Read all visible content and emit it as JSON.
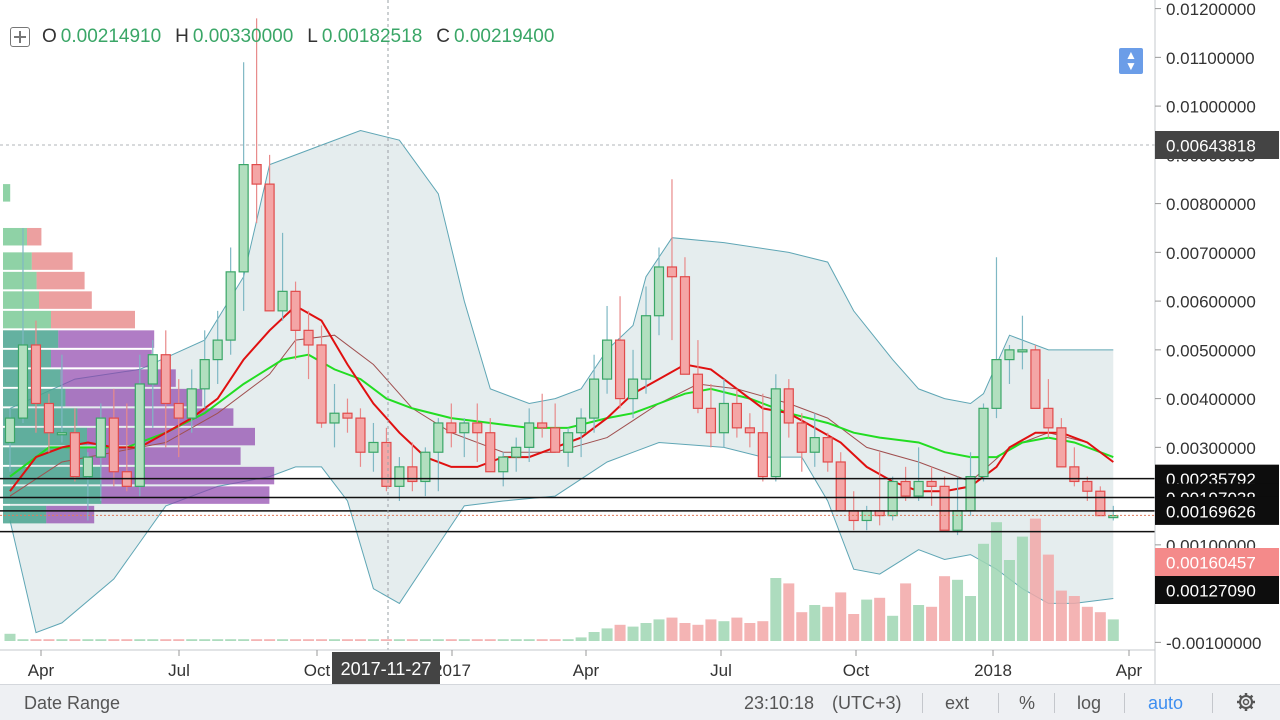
{
  "legend": {
    "o_key": "O",
    "o_val": "0.00214910",
    "h_key": "H",
    "h_val": "0.00330000",
    "l_key": "L",
    "l_val": "0.00182518",
    "c_key": "C",
    "c_val": "0.00219400"
  },
  "crosshair_date": "2017-11-27",
  "bottom_bar": {
    "date_range": "Date Range",
    "clock": "23:10:18",
    "timezone": "(UTC+3)",
    "ext": "ext",
    "percent": "%",
    "log": "log",
    "auto": "auto"
  },
  "icons": [
    "crosshair-plus-icon",
    "scroll-to-latest-icon",
    "gear-icon"
  ],
  "colors": {
    "up": "#3aa667",
    "up_fill": "#b2dfbf",
    "down": "#e04b4b",
    "down_fill": "#f4a6a6",
    "ma_fast": "#e01010",
    "ma_slow": "#22dd22",
    "band": "#5fa6b5",
    "band_fill": "#dfe9ea",
    "accent": "#3d8ef0",
    "crosshair_label_bg": "#444444",
    "current_price_bg": "#f48a8a"
  },
  "chart_data": {
    "type": "candlestick",
    "interval": "weekly",
    "x_tick_labels": [
      "Apr",
      "Jul",
      "Oct",
      "2017",
      "Apr",
      "Jul",
      "Oct",
      "2018",
      "Apr"
    ],
    "y_tick_labels": [
      "0.01200000",
      "0.01100000",
      "0.01000000",
      "0.00900000",
      "0.00800000",
      "0.00700000",
      "0.00600000",
      "0.00500000",
      "0.00400000",
      "0.00300000",
      "0.00200000",
      "0.00100000",
      "0.00000000",
      "-0.00100000"
    ],
    "ylim": [
      -0.00105,
      0.0124
    ],
    "price_markers": [
      {
        "value": "0.00643818",
        "style": "crosshair"
      },
      {
        "value": "0.00235792",
        "style": "black"
      },
      {
        "value": "0.00197038",
        "style": "black"
      },
      {
        "value": "0.00169626",
        "style": "black"
      },
      {
        "value": "0.00160457",
        "style": "current"
      },
      {
        "value": "0.00127090",
        "style": "black"
      }
    ],
    "horizontal_lines": [
      0.00235792,
      0.00197038,
      0.00169626,
      0.0012709
    ],
    "current_price": 0.00160457,
    "candles": [
      [
        0.0031,
        0.0038,
        0.0025,
        0.0036
      ],
      [
        0.0036,
        0.0075,
        0.0035,
        0.0051
      ],
      [
        0.0051,
        0.0056,
        0.0033,
        0.0039
      ],
      [
        0.0039,
        0.0041,
        0.0029,
        0.0033
      ],
      [
        0.0033,
        0.0049,
        0.0031,
        0.0033
      ],
      [
        0.0033,
        0.0038,
        0.0023,
        0.0024
      ],
      [
        0.0024,
        0.0029,
        0.0015,
        0.0028
      ],
      [
        0.0028,
        0.0039,
        0.0019,
        0.0036
      ],
      [
        0.0036,
        0.0042,
        0.0022,
        0.0025
      ],
      [
        0.0025,
        0.0039,
        0.0021,
        0.0022
      ],
      [
        0.0022,
        0.0049,
        0.002,
        0.0043
      ],
      [
        0.0043,
        0.0052,
        0.0034,
        0.0049
      ],
      [
        0.0049,
        0.0054,
        0.003,
        0.0039
      ],
      [
        0.0039,
        0.0044,
        0.0028,
        0.0036
      ],
      [
        0.0036,
        0.0046,
        0.0033,
        0.0042
      ],
      [
        0.0042,
        0.0054,
        0.0038,
        0.0048
      ],
      [
        0.0048,
        0.0058,
        0.0043,
        0.0052
      ],
      [
        0.0052,
        0.0071,
        0.0049,
        0.0066
      ],
      [
        0.0066,
        0.0109,
        0.0058,
        0.0088
      ],
      [
        0.0088,
        0.0118,
        0.0076,
        0.0084
      ],
      [
        0.0084,
        0.009,
        0.0058,
        0.0058
      ],
      [
        0.0058,
        0.0074,
        0.0056,
        0.0062
      ],
      [
        0.0062,
        0.0064,
        0.0048,
        0.0054
      ],
      [
        0.0054,
        0.0058,
        0.0044,
        0.0051
      ],
      [
        0.0051,
        0.0055,
        0.0034,
        0.0035
      ],
      [
        0.0035,
        0.0043,
        0.003,
        0.0037
      ],
      [
        0.0037,
        0.004,
        0.0033,
        0.0036
      ],
      [
        0.0036,
        0.0038,
        0.0026,
        0.0029
      ],
      [
        0.0029,
        0.0035,
        0.0025,
        0.0031
      ],
      [
        0.0031,
        0.0034,
        0.0021,
        0.0022
      ],
      [
        0.0022,
        0.0028,
        0.0019,
        0.0026
      ],
      [
        0.0026,
        0.0031,
        0.0021,
        0.0023
      ],
      [
        0.0023,
        0.003,
        0.002,
        0.0029
      ],
      [
        0.0029,
        0.0036,
        0.0021,
        0.0035
      ],
      [
        0.0035,
        0.0039,
        0.003,
        0.0033
      ],
      [
        0.0033,
        0.0036,
        0.0028,
        0.0035
      ],
      [
        0.0035,
        0.0039,
        0.0027,
        0.0033
      ],
      [
        0.0033,
        0.0036,
        0.0025,
        0.0025
      ],
      [
        0.0025,
        0.0029,
        0.0022,
        0.0028
      ],
      [
        0.0028,
        0.0032,
        0.0025,
        0.003
      ],
      [
        0.003,
        0.0038,
        0.0027,
        0.0035
      ],
      [
        0.0035,
        0.0041,
        0.0032,
        0.0034
      ],
      [
        0.0034,
        0.0039,
        0.0029,
        0.0029
      ],
      [
        0.0029,
        0.0034,
        0.0026,
        0.0033
      ],
      [
        0.0033,
        0.0038,
        0.0028,
        0.0036
      ],
      [
        0.0036,
        0.0049,
        0.0033,
        0.0044
      ],
      [
        0.0044,
        0.0059,
        0.0041,
        0.0052
      ],
      [
        0.0052,
        0.0061,
        0.0038,
        0.004
      ],
      [
        0.004,
        0.005,
        0.0036,
        0.0044
      ],
      [
        0.0044,
        0.0063,
        0.0041,
        0.0057
      ],
      [
        0.0057,
        0.0071,
        0.0053,
        0.0067
      ],
      [
        0.0067,
        0.0085,
        0.0052,
        0.0065
      ],
      [
        0.0065,
        0.0069,
        0.0045,
        0.0045
      ],
      [
        0.0045,
        0.0052,
        0.0037,
        0.0038
      ],
      [
        0.0038,
        0.0043,
        0.003,
        0.0033
      ],
      [
        0.0033,
        0.0044,
        0.003,
        0.0039
      ],
      [
        0.0039,
        0.0042,
        0.0032,
        0.0034
      ],
      [
        0.0034,
        0.0037,
        0.003,
        0.0033
      ],
      [
        0.0033,
        0.0041,
        0.0023,
        0.0024
      ],
      [
        0.0024,
        0.0045,
        0.0023,
        0.0042
      ],
      [
        0.0042,
        0.0044,
        0.0032,
        0.0035
      ],
      [
        0.0035,
        0.0037,
        0.0025,
        0.0029
      ],
      [
        0.0029,
        0.0037,
        0.0026,
        0.0032
      ],
      [
        0.0032,
        0.0033,
        0.0025,
        0.0027
      ],
      [
        0.0027,
        0.0029,
        0.0017,
        0.0017
      ],
      [
        0.0017,
        0.0021,
        0.0013,
        0.0015
      ],
      [
        0.0015,
        0.0018,
        0.0013,
        0.0017
      ],
      [
        0.0017,
        0.0029,
        0.0014,
        0.0016
      ],
      [
        0.0016,
        0.0024,
        0.0015,
        0.0023
      ],
      [
        0.0023,
        0.0026,
        0.0019,
        0.002
      ],
      [
        0.002,
        0.003,
        0.0019,
        0.0023
      ],
      [
        0.0023,
        0.0026,
        0.0018,
        0.0022
      ],
      [
        0.0022,
        0.0024,
        0.0013,
        0.0013
      ],
      [
        0.0013,
        0.0024,
        0.0012,
        0.0017
      ],
      [
        0.0017,
        0.0029,
        0.0016,
        0.0024
      ],
      [
        0.0024,
        0.0039,
        0.0023,
        0.0038
      ],
      [
        0.0038,
        0.0069,
        0.0036,
        0.0048
      ],
      [
        0.0048,
        0.0051,
        0.0043,
        0.005
      ],
      [
        0.005,
        0.0057,
        0.0046,
        0.005
      ],
      [
        0.005,
        0.0051,
        0.0038,
        0.0038
      ],
      [
        0.0038,
        0.0044,
        0.0032,
        0.0034
      ],
      [
        0.0034,
        0.0036,
        0.0026,
        0.0026
      ],
      [
        0.0026,
        0.003,
        0.0022,
        0.0023
      ],
      [
        0.0023,
        0.0024,
        0.0019,
        0.0021
      ],
      [
        0.0021,
        0.0022,
        0.0016,
        0.0016
      ],
      [
        0.0016,
        0.0018,
        0.0015,
        0.0016
      ]
    ],
    "bollinger_upper": [
      [
        0,
        0.0038
      ],
      [
        5,
        0.0044
      ],
      [
        10,
        0.0046
      ],
      [
        15,
        0.0052
      ],
      [
        18,
        0.0065
      ],
      [
        20,
        0.0088
      ],
      [
        22,
        0.009
      ],
      [
        24,
        0.0092
      ],
      [
        27,
        0.0095
      ],
      [
        30,
        0.0093
      ],
      [
        33,
        0.0082
      ],
      [
        35,
        0.006
      ],
      [
        37,
        0.0042
      ],
      [
        40,
        0.0039
      ],
      [
        42,
        0.004
      ],
      [
        44,
        0.0042
      ],
      [
        46,
        0.005
      ],
      [
        48,
        0.0055
      ],
      [
        49,
        0.0065
      ],
      [
        51,
        0.0073
      ],
      [
        55,
        0.0072
      ],
      [
        60,
        0.007
      ],
      [
        63,
        0.0068
      ],
      [
        65,
        0.0058
      ],
      [
        68,
        0.0048
      ],
      [
        70,
        0.0042
      ],
      [
        72,
        0.004
      ],
      [
        74,
        0.0039
      ],
      [
        75,
        0.0041
      ],
      [
        77,
        0.0053
      ],
      [
        80,
        0.005
      ],
      [
        85,
        0.005
      ]
    ],
    "bollinger_lower": [
      [
        0,
        0.0015
      ],
      [
        2,
        -0.0008
      ],
      [
        4,
        -0.0006
      ],
      [
        8,
        0.0003
      ],
      [
        12,
        0.0018
      ],
      [
        16,
        0.0022
      ],
      [
        20,
        0.0024
      ],
      [
        22,
        0.0026
      ],
      [
        24,
        0.0026
      ],
      [
        26,
        0.0019
      ],
      [
        28,
        0.0001
      ],
      [
        30,
        -0.0002
      ],
      [
        33,
        0.001
      ],
      [
        35,
        0.0018
      ],
      [
        38,
        0.0019
      ],
      [
        42,
        0.002
      ],
      [
        46,
        0.0027
      ],
      [
        50,
        0.0031
      ],
      [
        55,
        0.003
      ],
      [
        58,
        0.0028
      ],
      [
        61,
        0.0028
      ],
      [
        63,
        0.0019
      ],
      [
        65,
        0.0005
      ],
      [
        67,
        0.0004
      ],
      [
        70,
        0.0009
      ],
      [
        72,
        0.0007
      ],
      [
        74,
        0.0008
      ],
      [
        76,
        0.0005
      ],
      [
        78,
        0.0001
      ],
      [
        80,
        -0.0002
      ],
      [
        82,
        -0.0002
      ],
      [
        85,
        -0.0001
      ]
    ],
    "ma_fast": [
      [
        0,
        0.0021
      ],
      [
        2,
        0.0028
      ],
      [
        4,
        0.003
      ],
      [
        6,
        0.0031
      ],
      [
        8,
        0.003
      ],
      [
        10,
        0.003
      ],
      [
        12,
        0.0033
      ],
      [
        14,
        0.0036
      ],
      [
        16,
        0.004
      ],
      [
        18,
        0.0048
      ],
      [
        20,
        0.0054
      ],
      [
        22,
        0.0059
      ],
      [
        24,
        0.0056
      ],
      [
        26,
        0.0047
      ],
      [
        28,
        0.0039
      ],
      [
        30,
        0.0033
      ],
      [
        32,
        0.0028
      ],
      [
        34,
        0.0026
      ],
      [
        36,
        0.0026
      ],
      [
        38,
        0.0028
      ],
      [
        40,
        0.0028
      ],
      [
        42,
        0.003
      ],
      [
        44,
        0.0032
      ],
      [
        46,
        0.0036
      ],
      [
        48,
        0.0041
      ],
      [
        50,
        0.0044
      ],
      [
        52,
        0.0047
      ],
      [
        54,
        0.0046
      ],
      [
        56,
        0.0042
      ],
      [
        58,
        0.0038
      ],
      [
        60,
        0.0037
      ],
      [
        62,
        0.0034
      ],
      [
        64,
        0.0031
      ],
      [
        66,
        0.0026
      ],
      [
        68,
        0.0023
      ],
      [
        70,
        0.0021
      ],
      [
        72,
        0.0021
      ],
      [
        74,
        0.0022
      ],
      [
        76,
        0.0026
      ],
      [
        77,
        0.003
      ],
      [
        79,
        0.0033
      ],
      [
        81,
        0.0033
      ],
      [
        83,
        0.0031
      ],
      [
        85,
        0.0027
      ]
    ],
    "ma_slow": [
      [
        0,
        0.0024
      ],
      [
        3,
        0.003
      ],
      [
        6,
        0.003
      ],
      [
        9,
        0.003
      ],
      [
        12,
        0.0033
      ],
      [
        15,
        0.0037
      ],
      [
        18,
        0.0043
      ],
      [
        21,
        0.0048
      ],
      [
        23,
        0.0049
      ],
      [
        25,
        0.0046
      ],
      [
        27,
        0.0044
      ],
      [
        29,
        0.004
      ],
      [
        31,
        0.0038
      ],
      [
        34,
        0.0036
      ],
      [
        37,
        0.0035
      ],
      [
        40,
        0.0034
      ],
      [
        43,
        0.0034
      ],
      [
        46,
        0.0036
      ],
      [
        48,
        0.0037
      ],
      [
        50,
        0.0039
      ],
      [
        52,
        0.0041
      ],
      [
        54,
        0.0042
      ],
      [
        57,
        0.004
      ],
      [
        60,
        0.0037
      ],
      [
        63,
        0.0035
      ],
      [
        65,
        0.0033
      ],
      [
        67,
        0.0032
      ],
      [
        70,
        0.0031
      ],
      [
        72,
        0.0029
      ],
      [
        74,
        0.0028
      ],
      [
        76,
        0.0028
      ],
      [
        78,
        0.0031
      ],
      [
        80,
        0.0032
      ],
      [
        82,
        0.0031
      ],
      [
        85,
        0.0028
      ]
    ],
    "basis_line": [
      [
        0,
        0.002
      ],
      [
        4,
        0.0027
      ],
      [
        8,
        0.0029
      ],
      [
        12,
        0.0031
      ],
      [
        16,
        0.0037
      ],
      [
        20,
        0.0045
      ],
      [
        22,
        0.0052
      ],
      [
        25,
        0.0053
      ],
      [
        28,
        0.0047
      ],
      [
        31,
        0.0038
      ],
      [
        34,
        0.0033
      ],
      [
        38,
        0.0029
      ],
      [
        42,
        0.0029
      ],
      [
        46,
        0.0032
      ],
      [
        50,
        0.0039
      ],
      [
        53,
        0.0043
      ],
      [
        56,
        0.0042
      ],
      [
        60,
        0.0039
      ],
      [
        63,
        0.0036
      ],
      [
        66,
        0.003
      ],
      [
        70,
        0.0027
      ],
      [
        74,
        0.0023
      ],
      [
        77,
        0.003
      ],
      [
        80,
        0.0033
      ],
      [
        83,
        0.0031
      ],
      [
        85,
        0.0027
      ]
    ],
    "volume_profile": [
      {
        "price_low": 0.008,
        "price_high": 0.0084,
        "up": 0.3,
        "down": 0.0
      },
      {
        "price_low": 0.0071,
        "price_high": 0.0075,
        "up": 1.0,
        "down": 0.6
      },
      {
        "price_low": 0.0066,
        "price_high": 0.007,
        "up": 1.2,
        "down": 1.7
      },
      {
        "price_low": 0.0062,
        "price_high": 0.0066,
        "up": 1.4,
        "down": 2.0
      },
      {
        "price_low": 0.0058,
        "price_high": 0.0062,
        "up": 1.5,
        "down": 2.2
      },
      {
        "price_low": 0.0054,
        "price_high": 0.0058,
        "up": 2.0,
        "down": 3.5
      },
      {
        "price_low": 0.005,
        "price_high": 0.0054,
        "up": 2.3,
        "down": 4.0
      },
      {
        "price_low": 0.0046,
        "price_high": 0.005,
        "up": 2.0,
        "down": 4.2
      },
      {
        "price_low": 0.0042,
        "price_high": 0.0046,
        "up": 2.4,
        "down": 4.8
      },
      {
        "price_low": 0.0038,
        "price_high": 0.0042,
        "up": 2.6,
        "down": 5.7
      },
      {
        "price_low": 0.0034,
        "price_high": 0.0038,
        "up": 3.1,
        "down": 6.5
      },
      {
        "price_low": 0.003,
        "price_high": 0.0034,
        "up": 3.5,
        "down": 7.0
      },
      {
        "price_low": 0.0026,
        "price_high": 0.003,
        "up": 3.5,
        "down": 6.4
      },
      {
        "price_low": 0.0022,
        "price_high": 0.0026,
        "up": 4.1,
        "down": 7.2
      },
      {
        "price_low": 0.0018,
        "price_high": 0.0022,
        "up": 4.1,
        "down": 7.0
      },
      {
        "price_low": 0.0014,
        "price_high": 0.0018,
        "up": 1.8,
        "down": 2.0
      }
    ],
    "volume": [
      0.4,
      0.1,
      0.1,
      0.1,
      0.1,
      0.1,
      0.1,
      0.1,
      0.1,
      0.1,
      0.1,
      0.1,
      0.1,
      0.1,
      0.1,
      0.1,
      0.1,
      0.1,
      0.1,
      0.1,
      0.1,
      0.1,
      0.1,
      0.1,
      0.1,
      0.1,
      0.1,
      0.1,
      0.1,
      0.1,
      0.1,
      0.1,
      0.1,
      0.1,
      0.1,
      0.1,
      0.1,
      0.1,
      0.1,
      0.1,
      0.1,
      0.1,
      0.1,
      0.1,
      0.2,
      0.5,
      0.7,
      0.9,
      0.8,
      1.0,
      1.2,
      1.3,
      1.0,
      0.9,
      1.2,
      1.1,
      1.3,
      1.0,
      1.1,
      3.5,
      3.2,
      1.6,
      2.0,
      1.9,
      2.7,
      1.5,
      2.3,
      2.4,
      1.4,
      3.2,
      2.0,
      1.9,
      3.6,
      3.4,
      2.5,
      5.4,
      6.6,
      4.5,
      5.8,
      6.8,
      4.8,
      2.8,
      2.5,
      1.9,
      1.6,
      1.2
    ]
  }
}
